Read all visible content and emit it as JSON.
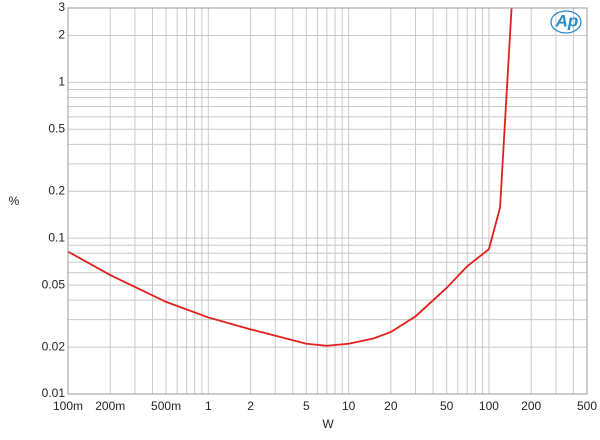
{
  "chart_data": {
    "type": "line",
    "x_label": "W",
    "y_label": "%",
    "logo": "Ap",
    "log_x": true,
    "log_y": true,
    "grid": true,
    "xlim": [
      0.1,
      500
    ],
    "ylim": [
      0.01,
      3
    ],
    "xticks": [
      {
        "value": 0.1,
        "label": "100m"
      },
      {
        "value": 0.2,
        "label": "200m"
      },
      {
        "value": 0.5,
        "label": "500m"
      },
      1,
      2,
      5,
      10,
      20,
      50,
      100,
      200,
      500
    ],
    "yticks": [
      0.01,
      0.02,
      0.05,
      0.1,
      0.2,
      0.5,
      1,
      2,
      3
    ],
    "xminorticks": [
      0.3,
      0.4,
      0.6,
      0.7,
      0.8,
      0.9,
      3,
      4,
      6,
      7,
      8,
      9,
      30,
      40,
      60,
      70,
      80,
      90,
      300,
      400
    ],
    "yminorticks": [
      0.03,
      0.04,
      0.06,
      0.07,
      0.08,
      0.09,
      0.3,
      0.4,
      0.6,
      0.7,
      0.8,
      0.9
    ],
    "series": [
      {
        "color": "#e0201b",
        "x": [
          0.1,
          0.2,
          0.5,
          1,
          2,
          5,
          7,
          10,
          15,
          20,
          30,
          50,
          70,
          100,
          120,
          145
        ],
        "values": [
          0.082,
          0.058,
          0.039,
          0.031,
          0.026,
          0.021,
          0.0204,
          0.021,
          0.0227,
          0.025,
          0.0315,
          0.048,
          0.066,
          0.085,
          0.157,
          3
        ]
      }
    ]
  }
}
